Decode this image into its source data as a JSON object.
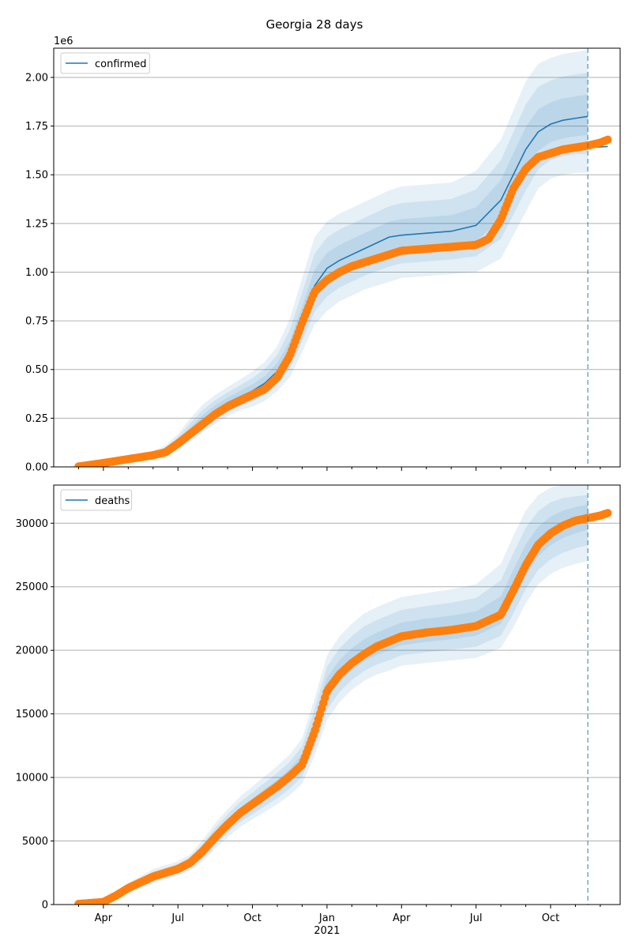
{
  "figure": {
    "title": "Georgia 28 days"
  },
  "colors": {
    "model": "#1f77b4",
    "observed": "#ff7f0e",
    "band": "#1f77b4",
    "grid": "#b0b0b0",
    "forecast_line": "#1f77b4"
  },
  "chart_data": [
    {
      "type": "line",
      "title": "",
      "xlabel": "",
      "ylabel": "",
      "y_offset_label": "1e6",
      "ylim": [
        0,
        2.15
      ],
      "y_ticks": [
        0,
        0.25,
        0.5,
        0.75,
        1.0,
        1.25,
        1.5,
        1.75,
        2.0
      ],
      "y_tick_labels": [
        "0.00",
        "0.25",
        "0.50",
        "0.75",
        "1.00",
        "1.25",
        "1.50",
        "1.75",
        "2.00"
      ],
      "x_tick_labels_visible": false,
      "legend": {
        "position": "top-left",
        "entries": [
          "confirmed"
        ]
      },
      "grid": "horizontal",
      "forecast_start_month": 20.5,
      "series": [
        {
          "name": "confirmed",
          "role": "model",
          "x": [
            0,
            1,
            2,
            3,
            3.5,
            4,
            4.5,
            5,
            5.5,
            6,
            6.5,
            7,
            7.5,
            8,
            8.5,
            9,
            9.5,
            10,
            10.5,
            11,
            11.5,
            12,
            12.5,
            13,
            14,
            15,
            16,
            17,
            18,
            18.5,
            19,
            19.5,
            20,
            20.5
          ],
          "y": [
            0.002,
            0.02,
            0.04,
            0.06,
            0.08,
            0.12,
            0.18,
            0.24,
            0.29,
            0.33,
            0.36,
            0.39,
            0.43,
            0.49,
            0.59,
            0.75,
            0.93,
            1.02,
            1.06,
            1.09,
            1.12,
            1.15,
            1.18,
            1.19,
            1.2,
            1.21,
            1.24,
            1.37,
            1.63,
            1.72,
            1.76,
            1.78,
            1.79,
            1.8
          ]
        },
        {
          "name": "",
          "role": "model-continuation",
          "x": [
            20.5,
            21.3
          ],
          "y": [
            1.64,
            1.645
          ]
        },
        {
          "name": "",
          "role": "observed",
          "x": [
            0,
            1,
            2,
            3,
            3.5,
            4,
            4.5,
            5,
            5.5,
            6,
            6.5,
            7,
            7.5,
            8,
            8.5,
            9,
            9.5,
            10,
            10.5,
            11,
            11.5,
            12,
            12.5,
            13,
            14,
            15,
            16,
            16.5,
            17,
            17.5,
            18,
            18.5,
            19,
            19.5,
            20,
            20.5,
            21,
            21.3
          ],
          "y": [
            0.002,
            0.02,
            0.04,
            0.06,
            0.075,
            0.12,
            0.17,
            0.22,
            0.27,
            0.31,
            0.34,
            0.37,
            0.4,
            0.46,
            0.57,
            0.74,
            0.9,
            0.96,
            1.0,
            1.03,
            1.05,
            1.07,
            1.09,
            1.11,
            1.12,
            1.13,
            1.14,
            1.17,
            1.27,
            1.43,
            1.53,
            1.59,
            1.61,
            1.63,
            1.64,
            1.65,
            1.665,
            1.68
          ]
        }
      ],
      "bands": {
        "x": [
          0,
          1,
          2,
          3,
          3.5,
          4,
          4.5,
          5,
          5.5,
          6,
          6.5,
          7,
          7.5,
          8,
          8.5,
          9,
          9.5,
          10,
          10.5,
          11,
          11.5,
          12,
          12.5,
          13,
          14,
          15,
          16,
          17,
          18,
          18.5,
          19,
          19.5,
          20,
          20.5
        ],
        "center": [
          0.002,
          0.02,
          0.04,
          0.06,
          0.08,
          0.12,
          0.18,
          0.24,
          0.29,
          0.33,
          0.36,
          0.39,
          0.43,
          0.49,
          0.59,
          0.75,
          0.93,
          1.02,
          1.06,
          1.09,
          1.12,
          1.15,
          1.18,
          1.19,
          1.2,
          1.21,
          1.24,
          1.37,
          1.63,
          1.72,
          1.76,
          1.78,
          1.79,
          1.8
        ],
        "outer_upper": [
          0.003,
          0.03,
          0.05,
          0.08,
          0.11,
          0.17,
          0.25,
          0.32,
          0.37,
          0.41,
          0.45,
          0.49,
          0.54,
          0.62,
          0.76,
          0.97,
          1.18,
          1.26,
          1.3,
          1.33,
          1.36,
          1.39,
          1.42,
          1.44,
          1.45,
          1.46,
          1.52,
          1.68,
          1.98,
          2.07,
          2.1,
          2.12,
          2.13,
          2.14
        ],
        "outer_lower": [
          0.001,
          0.01,
          0.03,
          0.04,
          0.06,
          0.09,
          0.13,
          0.18,
          0.22,
          0.26,
          0.29,
          0.31,
          0.34,
          0.39,
          0.46,
          0.59,
          0.73,
          0.8,
          0.85,
          0.88,
          0.91,
          0.93,
          0.95,
          0.97,
          0.98,
          0.99,
          1.0,
          1.07,
          1.31,
          1.43,
          1.48,
          1.5,
          1.51,
          1.51
        ]
      }
    },
    {
      "type": "line",
      "title": "",
      "xlabel": "",
      "ylabel": "",
      "ylim": [
        0,
        33000
      ],
      "y_ticks": [
        0,
        5000,
        10000,
        15000,
        20000,
        25000,
        30000
      ],
      "y_tick_labels": [
        "0",
        "5000",
        "10000",
        "15000",
        "20000",
        "25000",
        "30000"
      ],
      "x_tick_labels": [
        "Apr",
        "Jul",
        "Oct",
        "Jan",
        "Apr",
        "Jul",
        "Oct"
      ],
      "x_ticks": [
        1,
        4,
        7,
        10,
        13,
        16,
        19
      ],
      "x_year_label": "2021",
      "legend": {
        "position": "top-left",
        "entries": [
          "deaths"
        ]
      },
      "grid": "horizontal",
      "forecast_start_month": 20.5,
      "series": [
        {
          "name": "deaths",
          "role": "model",
          "x": [
            0,
            1,
            1.5,
            2,
            3,
            4,
            4.5,
            5,
            5.5,
            6,
            6.5,
            7,
            7.5,
            8,
            8.5,
            9,
            9.5,
            10,
            10.5,
            11,
            11.5,
            12,
            12.5,
            13,
            14,
            15,
            16,
            17,
            17.5,
            18,
            18.5,
            19,
            19.5,
            20,
            20.5
          ],
          "y": [
            50,
            200,
            700,
            1300,
            2200,
            2800,
            3300,
            4200,
            5300,
            6300,
            7200,
            7900,
            8600,
            9300,
            10100,
            11200,
            13800,
            17000,
            18300,
            19200,
            19900,
            20400,
            20800,
            21200,
            21500,
            21700,
            22000,
            23000,
            25000,
            27000,
            28500,
            29400,
            30000,
            30400,
            30700
          ]
        },
        {
          "name": "",
          "role": "observed",
          "x": [
            0,
            1,
            1.5,
            2,
            3,
            4,
            4.5,
            5,
            5.5,
            6,
            6.5,
            7,
            7.5,
            8,
            8.5,
            9,
            9.5,
            10,
            10.5,
            11,
            11.5,
            12,
            12.5,
            13,
            14,
            15,
            16,
            17,
            17.5,
            18,
            18.5,
            19,
            19.5,
            20,
            20.5,
            21,
            21.3
          ],
          "y": [
            50,
            200,
            700,
            1300,
            2200,
            2800,
            3300,
            4200,
            5300,
            6300,
            7200,
            7900,
            8600,
            9300,
            10100,
            11000,
            13600,
            16800,
            18100,
            19000,
            19700,
            20300,
            20700,
            21100,
            21400,
            21600,
            21900,
            22800,
            24700,
            26700,
            28300,
            29200,
            29800,
            30200,
            30400,
            30600,
            30800
          ]
        }
      ],
      "bands": {
        "x": [
          0,
          1,
          1.5,
          2,
          3,
          4,
          4.5,
          5,
          5.5,
          6,
          6.5,
          7,
          7.5,
          8,
          8.5,
          9,
          9.5,
          10,
          10.5,
          11,
          11.5,
          12,
          12.5,
          13,
          14,
          15,
          16,
          17,
          17.5,
          18,
          18.5,
          19,
          19.5,
          20,
          20.5
        ],
        "center": [
          50,
          200,
          700,
          1300,
          2200,
          2800,
          3300,
          4200,
          5300,
          6300,
          7200,
          7900,
          8600,
          9300,
          10100,
          11200,
          13800,
          17000,
          18300,
          19200,
          19900,
          20400,
          20800,
          21200,
          21500,
          21700,
          22000,
          23000,
          25000,
          27000,
          28500,
          29400,
          30000,
          30400,
          30700
        ],
        "outer_upper": [
          80,
          300,
          950,
          1700,
          2800,
          3400,
          3950,
          5100,
          6400,
          7500,
          8500,
          9300,
          10100,
          10900,
          11800,
          13100,
          16200,
          19600,
          21100,
          22100,
          22900,
          23400,
          23800,
          24200,
          24500,
          24800,
          25200,
          26800,
          29000,
          31000,
          32200,
          32800,
          33000,
          33000,
          33000
        ],
        "outer_lower": [
          30,
          120,
          500,
          950,
          1700,
          2300,
          2700,
          3400,
          4400,
          5300,
          6100,
          6700,
          7300,
          7900,
          8600,
          9500,
          11700,
          14500,
          15900,
          16900,
          17600,
          18100,
          18400,
          18800,
          19000,
          19200,
          19400,
          20200,
          21800,
          23700,
          25200,
          26000,
          26500,
          26800,
          27000
        ]
      }
    }
  ]
}
